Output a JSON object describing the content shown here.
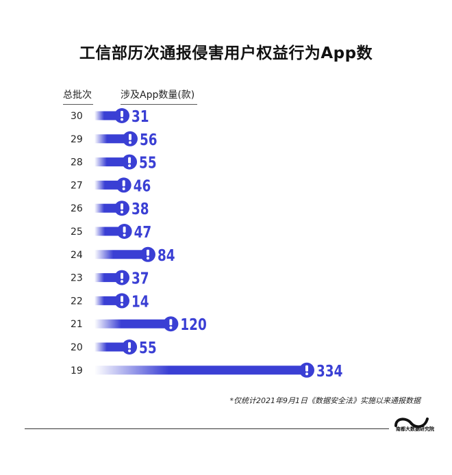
{
  "title": "工信部历次通报侵害用户权益行为App数",
  "headers": {
    "batch": "总批次",
    "count": "涉及App数量(款)"
  },
  "footnote": "*仅统计2021年9月1日《数据安全法》实施以来通报数据",
  "brand": "南都大数据研究院",
  "colors": {
    "bar": "#3a3fd4",
    "bar_fade": "#ffffff",
    "label": "#3a3fd4",
    "icon_mark": "#ffffff"
  },
  "chart_data": {
    "type": "bar",
    "orientation": "horizontal",
    "categories": [
      "30",
      "29",
      "28",
      "27",
      "26",
      "25",
      "24",
      "23",
      "22",
      "21",
      "20",
      "19"
    ],
    "values": [
      31,
      56,
      55,
      46,
      38,
      47,
      84,
      37,
      14,
      120,
      55,
      334
    ],
    "title": "工信部历次通报侵害用户权益行为App数",
    "xlabel": "涉及App数量(款)",
    "ylabel": "总批次",
    "grid": false,
    "legend": "none"
  }
}
